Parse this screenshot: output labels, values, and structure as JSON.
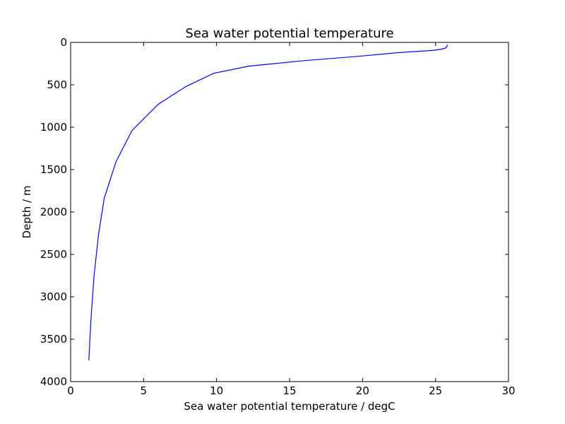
{
  "chart_data": {
    "type": "line",
    "title": "Sea water potential temperature",
    "xlabel": "Sea water potential temperature / degC",
    "ylabel": "Depth / m",
    "xlim": [
      0,
      30
    ],
    "ylim": [
      4000,
      0
    ],
    "y_inverted": true,
    "grid": false,
    "legend": "none",
    "xticks": [
      0,
      5,
      10,
      15,
      20,
      25,
      30
    ],
    "yticks": [
      0,
      500,
      1000,
      1500,
      2000,
      2500,
      3000,
      3500,
      4000
    ],
    "series": [
      {
        "color": "#0000ff",
        "x": [
          25.8,
          25.8,
          25.7,
          25.4,
          24.8,
          22.5,
          20.0,
          16.0,
          12.2,
          9.8,
          7.9,
          6.0,
          4.2,
          3.1,
          2.3,
          1.9,
          1.6,
          1.4,
          1.25
        ],
        "y": [
          25,
          45,
          65,
          80,
          95,
          120,
          160,
          215,
          280,
          365,
          520,
          730,
          1040,
          1410,
          1840,
          2280,
          2760,
          3250,
          3750
        ]
      }
    ]
  }
}
